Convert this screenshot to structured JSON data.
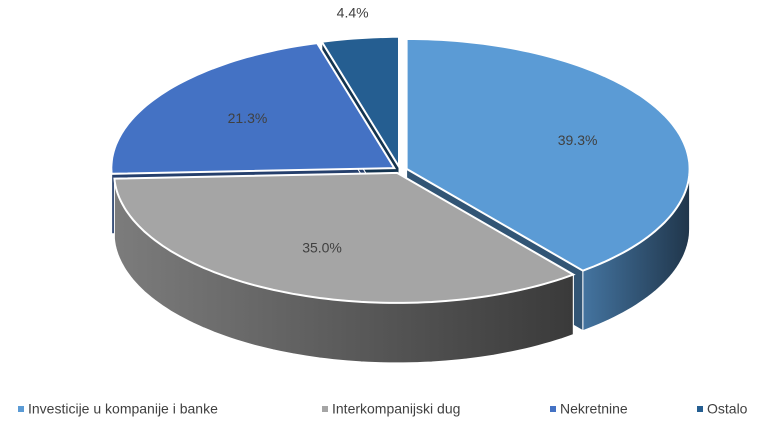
{
  "chart_data": {
    "type": "pie",
    "categories": [
      "Investicije u kompanije i banke",
      "Interkompanijski dug",
      "Nekretnine",
      "Ostalo"
    ],
    "values": [
      39.3,
      35,
      21.3,
      4.4
    ],
    "value_labels": [
      "39.3%",
      "35.0%",
      "21.3%",
      "4.4%"
    ],
    "colors": [
      "#5b9bd5",
      "#a5a5a5",
      "#4472c4",
      "#255e91"
    ],
    "legend": "bottom"
  }
}
